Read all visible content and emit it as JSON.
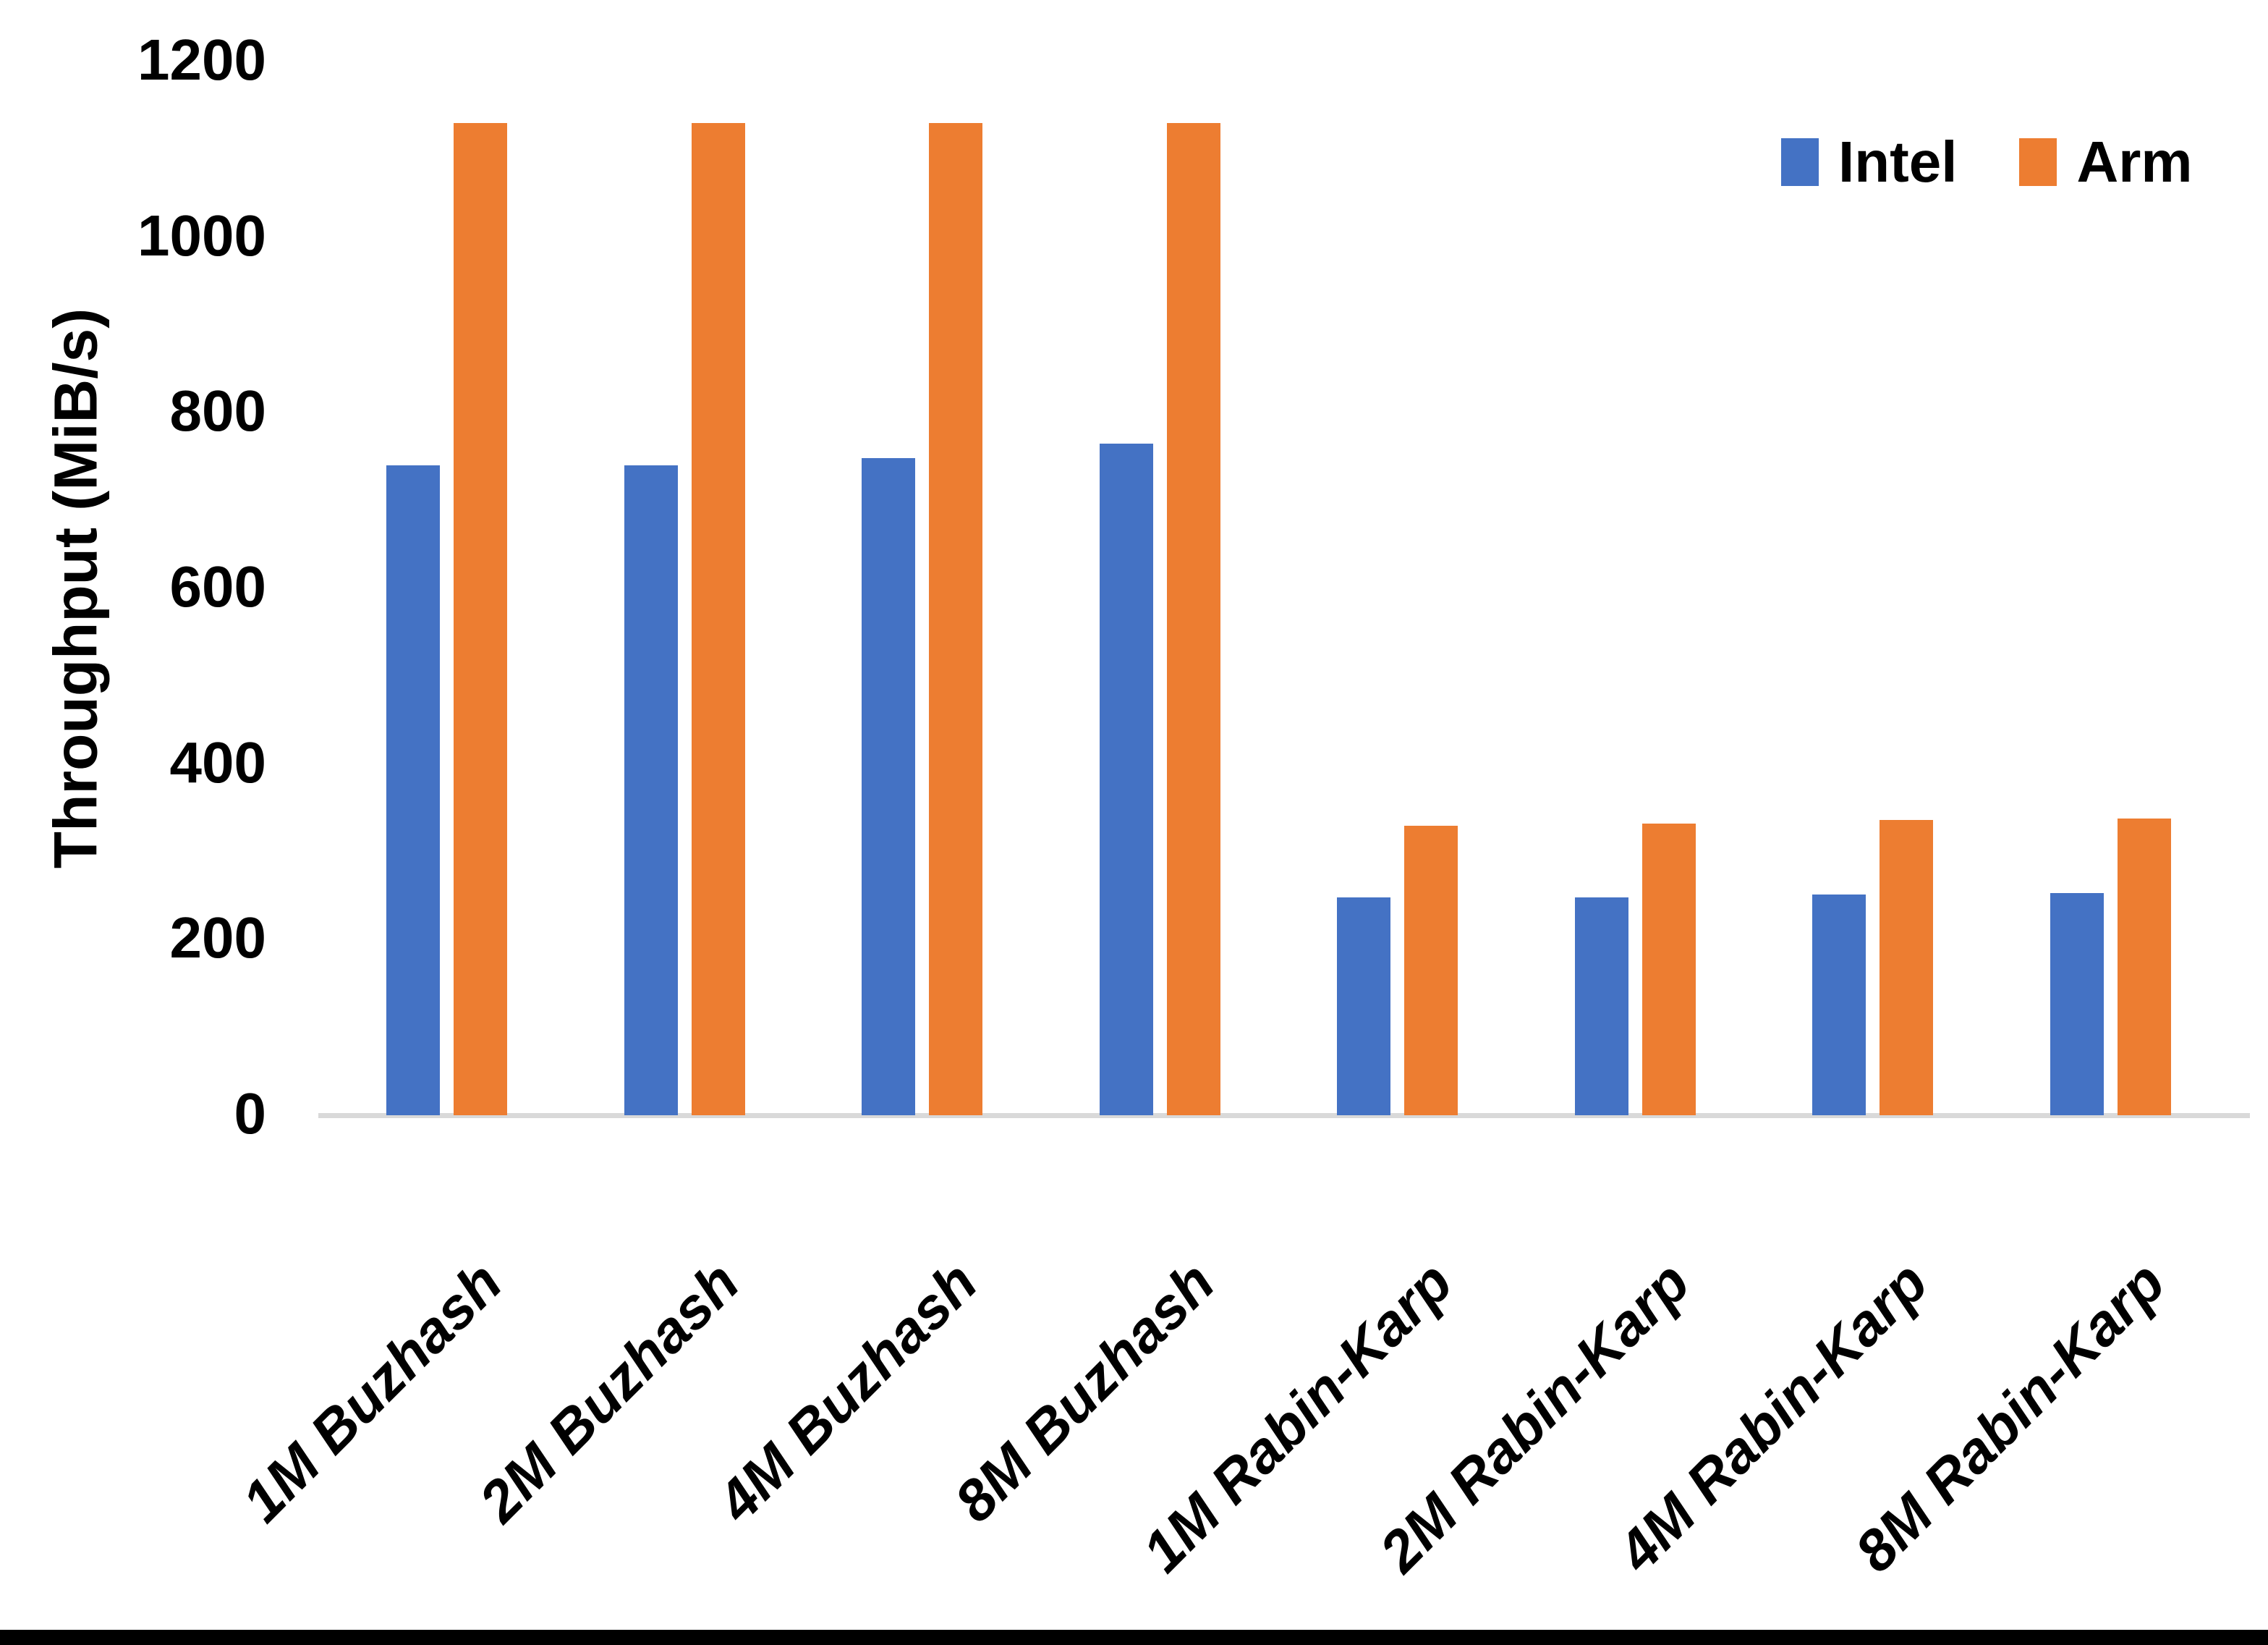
{
  "figure": {
    "background": "#ffffff",
    "bottom_border_color": "#000000"
  },
  "chart_data": {
    "type": "bar",
    "title": "",
    "xlabel": "",
    "ylabel": "Throughput (MiB/s)",
    "categories": [
      "1M Buzhash",
      "2M Buzhash",
      "4M Buzhash",
      "8M Buzhash",
      "1M Rabin-Karp",
      "2M Rabin-Karp",
      "4M Rabin-Karp",
      "8M Rabin-Karp"
    ],
    "series": [
      {
        "name": "Intel",
        "color": "#4472C4",
        "values": [
          740,
          740,
          748,
          765,
          248,
          248,
          251,
          253
        ]
      },
      {
        "name": "Arm",
        "color": "#ED7D31",
        "values": [
          1130,
          1130,
          1130,
          1130,
          330,
          332,
          336,
          338
        ]
      }
    ],
    "ylim": [
      0,
      1200
    ],
    "yticks": [
      0,
      200,
      400,
      600,
      800,
      1000,
      1200
    ],
    "grid": false,
    "legend_position": "top-right",
    "x_tick_rotation_deg": 45,
    "axis_line_color": "#D9D9D9",
    "text_color": "#000000"
  }
}
